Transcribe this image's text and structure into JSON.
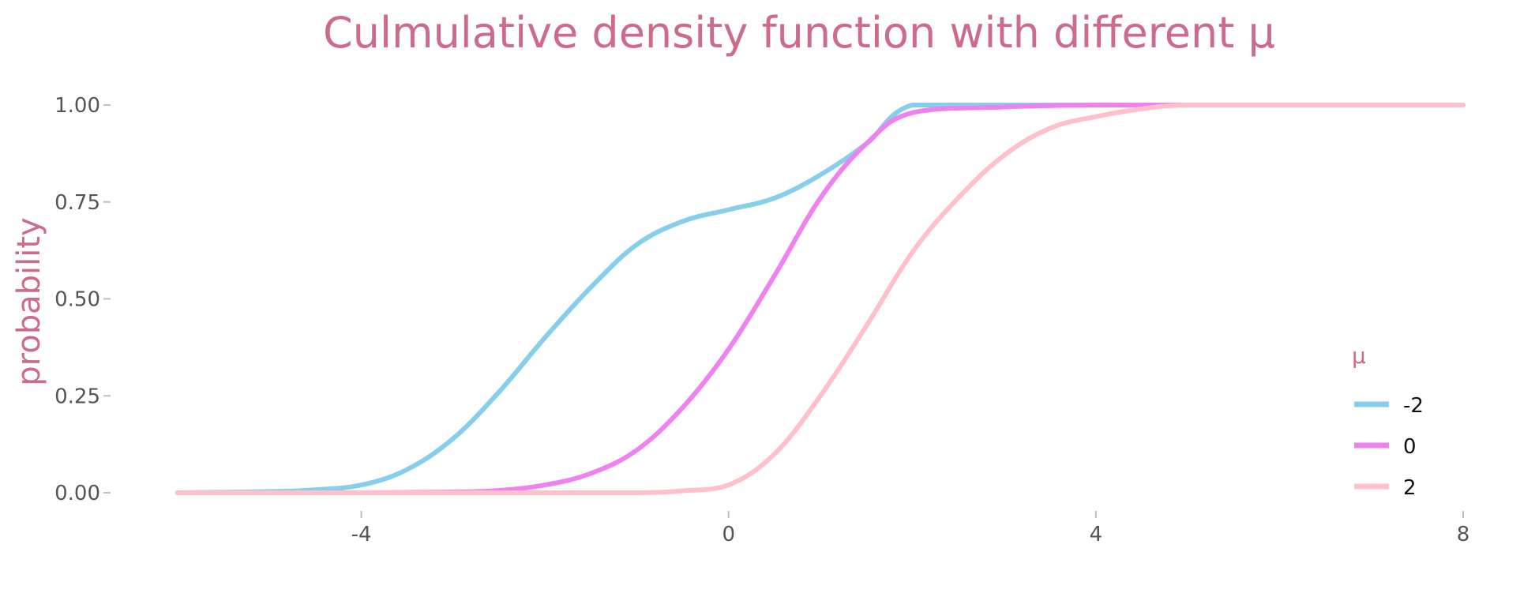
{
  "chart_data": {
    "type": "line",
    "title": "Culmulative density function with different μ",
    "ylabel": "probability",
    "xlabel": "",
    "xlim": [
      -6,
      8
    ],
    "ylim": [
      0,
      1
    ],
    "x_ticks": [
      "-4",
      "0",
      "4",
      "8"
    ],
    "x_tick_values": [
      -4,
      0,
      4,
      8
    ],
    "y_ticks": [
      "0.00",
      "0.25",
      "0.50",
      "0.75",
      "1.00"
    ],
    "y_tick_values": [
      0,
      0.25,
      0.5,
      0.75,
      1
    ],
    "grid": false,
    "legend": {
      "title": "μ",
      "placement": "right"
    },
    "series": [
      {
        "name": "-2",
        "color": "#87ceeb",
        "x": [
          -6,
          -5,
          -4.5,
          -4,
          -3.5,
          -3,
          -2.5,
          -2,
          -1.5,
          -1,
          -0.5,
          0,
          0.5,
          1,
          1.5,
          2,
          3,
          4,
          5,
          6,
          7,
          8
        ],
        "y": [
          0,
          0.003,
          0.008,
          0.02,
          0.06,
          0.14,
          0.26,
          0.4,
          0.53,
          0.64,
          0.7,
          0.73,
          0.76,
          0.82,
          0.9,
          1.0,
          1.0,
          1.0,
          1.0,
          1.0,
          1.0,
          1.0
        ]
      },
      {
        "name": "0",
        "color": "#ee82ee",
        "x": [
          -6,
          -4,
          -3,
          -2.5,
          -2,
          -1.5,
          -1,
          -0.5,
          0,
          0.5,
          1,
          1.5,
          2,
          3,
          4,
          5,
          6,
          7,
          8
        ],
        "y": [
          0,
          0,
          0.002,
          0.006,
          0.02,
          0.05,
          0.11,
          0.22,
          0.37,
          0.56,
          0.76,
          0.9,
          0.98,
          0.995,
          1.0,
          1.0,
          1.0,
          1.0,
          1.0
        ]
      },
      {
        "name": "2",
        "color": "#ffc0cb",
        "x": [
          -6,
          -3,
          -2,
          -1,
          -0.5,
          0,
          0.5,
          1,
          1.5,
          2,
          2.5,
          3,
          3.5,
          4,
          4.5,
          5,
          6,
          7,
          8
        ],
        "y": [
          0,
          0,
          0,
          0,
          0.005,
          0.02,
          0.1,
          0.25,
          0.43,
          0.62,
          0.76,
          0.87,
          0.94,
          0.97,
          0.99,
          1.0,
          1.0,
          1.0,
          1.0
        ]
      }
    ]
  }
}
